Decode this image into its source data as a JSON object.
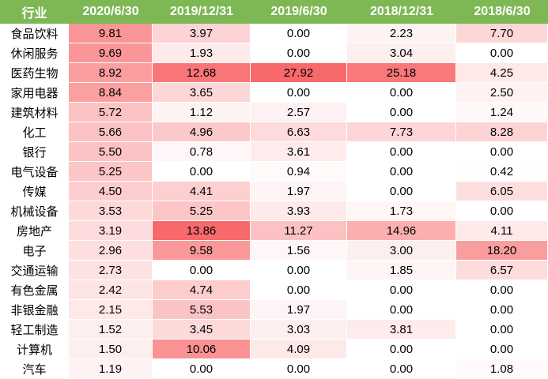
{
  "style": {
    "header_bg": "#7DB855",
    "header_text_color": "#FFFFFF",
    "body_text_color": "#000000",
    "page_bg": "#FFFFFF"
  },
  "chart_data": {
    "type": "heatmap",
    "title": "",
    "columns": [
      "行业",
      "2020/6/30",
      "2019/12/31",
      "2019/6/30",
      "2018/12/31",
      "2018/6/30"
    ],
    "rows": [
      "食品饮料",
      "休闲服务",
      "医药生物",
      "家用电器",
      "建筑材料",
      "化工",
      "银行",
      "电气设备",
      "传媒",
      "机械设备",
      "房地产",
      "电子",
      "交通运输",
      "有色金属",
      "非银金融",
      "轻工制造",
      "计算机",
      "汽车"
    ],
    "values": [
      [
        9.81,
        3.97,
        0.0,
        2.23,
        7.7
      ],
      [
        9.69,
        1.93,
        0.0,
        3.04,
        0.0
      ],
      [
        8.92,
        12.68,
        27.92,
        25.18,
        4.25
      ],
      [
        8.84,
        3.65,
        0.0,
        0.0,
        2.5
      ],
      [
        5.72,
        1.12,
        2.57,
        0.0,
        1.24
      ],
      [
        5.66,
        4.96,
        6.63,
        7.73,
        8.28
      ],
      [
        5.5,
        0.78,
        3.61,
        0.0,
        0.0
      ],
      [
        5.25,
        0.0,
        0.94,
        0.0,
        0.42
      ],
      [
        4.5,
        4.41,
        1.97,
        0.0,
        6.05
      ],
      [
        3.53,
        5.25,
        3.93,
        1.73,
        0.0
      ],
      [
        3.19,
        13.86,
        11.27,
        14.96,
        4.11
      ],
      [
        2.96,
        9.58,
        1.56,
        3.0,
        18.2
      ],
      [
        2.73,
        0.0,
        0.0,
        1.85,
        6.57
      ],
      [
        2.42,
        4.74,
        0.0,
        0.0,
        0.0
      ],
      [
        2.15,
        5.53,
        1.97,
        0.0,
        0.0
      ],
      [
        1.52,
        3.45,
        3.03,
        3.81,
        0.0
      ],
      [
        1.5,
        10.06,
        4.09,
        0.0,
        0.0
      ],
      [
        1.19,
        0.0,
        0.0,
        0.0,
        1.08
      ]
    ],
    "value_decimals": 2,
    "colorscale": {
      "min_value": 0,
      "min_color": "#FFFFFF",
      "max_color": "#F8696B",
      "column_groups": [
        {
          "value_columns": [
            0,
            1
          ],
          "max_value": 13.86
        },
        {
          "value_columns": [
            2,
            3,
            4
          ],
          "max_value": 27.92
        }
      ]
    },
    "legend": "none",
    "grid": "off"
  }
}
